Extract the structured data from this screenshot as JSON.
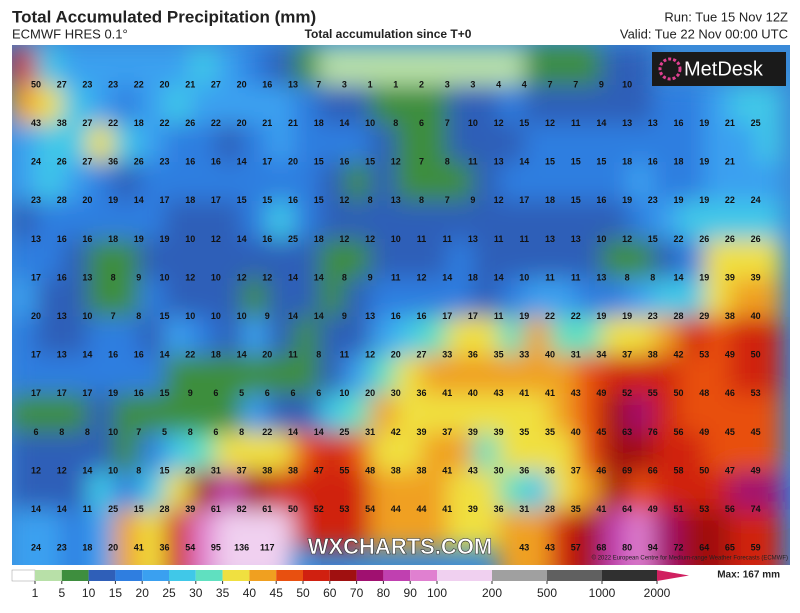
{
  "header": {
    "title": "Total Accumulated Precipitation (mm)",
    "model": "ECMWF HRES 0.1°",
    "subtitle": "Total accumulation since T+0",
    "run": "Run: Tue 15 Nov 12Z",
    "valid": "Valid: Tue 22 Nov 00:00 UTC"
  },
  "logo": "MetDesk",
  "watermark": "WXCHARTS.COM",
  "copyright": "© 2022 European Centre for Medium-range Weather Forecasts (ECMWF)",
  "map": {
    "grid": [
      [
        50,
        27,
        23,
        23,
        22,
        20,
        21,
        27,
        20,
        16,
        13,
        7,
        3,
        1,
        1,
        2,
        3,
        3,
        4,
        4,
        7,
        7,
        9,
        10,
        null,
        null,
        null,
        null,
        null
      ],
      [
        43,
        38,
        27,
        22,
        18,
        22,
        26,
        22,
        20,
        21,
        21,
        18,
        14,
        10,
        8,
        6,
        7,
        10,
        12,
        15,
        12,
        11,
        14,
        13,
        13,
        16,
        19,
        21,
        25
      ],
      [
        24,
        26,
        27,
        36,
        26,
        23,
        16,
        16,
        14,
        17,
        20,
        15,
        16,
        15,
        12,
        7,
        8,
        11,
        13,
        14,
        15,
        15,
        15,
        18,
        16,
        18,
        19,
        21,
        null
      ],
      [
        23,
        28,
        20,
        19,
        14,
        17,
        18,
        17,
        15,
        15,
        16,
        15,
        12,
        8,
        13,
        8,
        7,
        9,
        12,
        17,
        18,
        15,
        16,
        19,
        23,
        19,
        19,
        22,
        24
      ],
      [
        13,
        16,
        16,
        18,
        19,
        19,
        10,
        12,
        14,
        16,
        25,
        18,
        12,
        12,
        10,
        11,
        11,
        13,
        11,
        11,
        13,
        13,
        10,
        12,
        15,
        22,
        26,
        26,
        26
      ],
      [
        17,
        16,
        13,
        8,
        9,
        10,
        12,
        10,
        12,
        12,
        14,
        14,
        8,
        9,
        11,
        12,
        14,
        18,
        14,
        10,
        11,
        11,
        13,
        8,
        8,
        14,
        19,
        39,
        39
      ],
      [
        20,
        13,
        10,
        7,
        8,
        15,
        10,
        10,
        10,
        9,
        14,
        14,
        9,
        13,
        16,
        16,
        17,
        17,
        11,
        19,
        22,
        22,
        19,
        19,
        23,
        28,
        29,
        38,
        40
      ],
      [
        17,
        13,
        14,
        16,
        16,
        14,
        22,
        18,
        14,
        20,
        11,
        8,
        11,
        12,
        20,
        27,
        33,
        36,
        35,
        33,
        40,
        31,
        34,
        37,
        38,
        42,
        53,
        49,
        50
      ],
      [
        17,
        17,
        17,
        19,
        16,
        15,
        9,
        6,
        5,
        6,
        6,
        6,
        10,
        20,
        30,
        36,
        41,
        40,
        43,
        41,
        41,
        43,
        49,
        52,
        55,
        50,
        48,
        46,
        53
      ],
      [
        6,
        8,
        8,
        10,
        7,
        5,
        8,
        6,
        8,
        22,
        14,
        14,
        25,
        31,
        42,
        39,
        37,
        39,
        39,
        35,
        35,
        40,
        45,
        63,
        76,
        56,
        49,
        45,
        45
      ],
      [
        12,
        12,
        14,
        10,
        8,
        15,
        28,
        31,
        37,
        38,
        38,
        47,
        55,
        48,
        38,
        38,
        41,
        43,
        30,
        36,
        36,
        37,
        46,
        69,
        66,
        58,
        50,
        47,
        49
      ],
      [
        14,
        14,
        11,
        25,
        15,
        28,
        39,
        61,
        82,
        61,
        50,
        52,
        53,
        54,
        44,
        44,
        41,
        39,
        36,
        31,
        28,
        35,
        41,
        64,
        49,
        51,
        53,
        56,
        74
      ],
      [
        24,
        23,
        18,
        20,
        41,
        36,
        54,
        95,
        136,
        117,
        null,
        null,
        null,
        null,
        null,
        null,
        null,
        null,
        null,
        43,
        43,
        57,
        68,
        80,
        94,
        72,
        64,
        65,
        59
      ]
    ]
  },
  "colorbar": {
    "ticks": [
      1,
      5,
      10,
      15,
      20,
      25,
      30,
      35,
      40,
      45,
      50,
      60,
      70,
      80,
      90,
      100,
      200,
      500,
      1000,
      2000
    ],
    "colors": [
      "#b8e0a8",
      "#3e8e3e",
      "#2f5fb8",
      "#2f7ee0",
      "#3aa0f0",
      "#40c8e8",
      "#60e0c0",
      "#f0e040",
      "#f0a020",
      "#e85010",
      "#d02010",
      "#a01010",
      "#a01070",
      "#c040b0",
      "#e080d0",
      "#f0d0f0",
      "#a0a0a0",
      "#606060",
      "#303030",
      "#d02060"
    ],
    "max": "Max: 167 mm"
  }
}
